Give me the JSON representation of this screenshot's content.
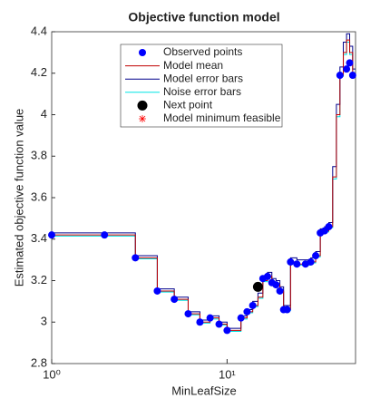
{
  "chart_data": {
    "type": "line",
    "title": "Objective function model",
    "x_label": "MinLeafSize",
    "y_label": "Estimated objective function value",
    "xlog": true,
    "xlim": [
      1,
      54
    ],
    "ylim": [
      2.8,
      4.4
    ],
    "xticks": [
      {
        "value": 1,
        "label": "10⁰"
      },
      {
        "value": 10,
        "label": "10¹"
      }
    ],
    "yticks": [
      2.8,
      3,
      3.2,
      3.4,
      3.6,
      3.8,
      4,
      4.2,
      4.4
    ],
    "x": [
      1,
      2,
      3,
      4,
      5,
      6,
      7,
      8,
      9,
      10,
      12,
      13,
      14,
      15,
      16,
      17,
      18,
      19,
      20,
      21,
      22,
      23,
      25,
      28,
      30,
      32,
      34,
      36,
      38,
      40,
      42,
      44,
      46,
      48,
      50,
      52,
      54
    ],
    "series": [
      {
        "name": "Model mean",
        "color": "#c00000",
        "values": [
          3.42,
          3.42,
          3.31,
          3.15,
          3.11,
          3.04,
          3.0,
          3.02,
          2.99,
          2.96,
          3.02,
          3.05,
          3.08,
          3.12,
          3.2,
          3.22,
          3.19,
          3.18,
          3.15,
          3.06,
          3.06,
          3.29,
          3.28,
          3.28,
          3.29,
          3.32,
          3.43,
          3.44,
          3.46,
          3.7,
          4.0,
          4.19,
          4.3,
          4.36,
          4.3,
          4.2,
          4.2
        ]
      },
      {
        "name": "Model error bars",
        "color": "#00008b",
        "values": [
          3.43,
          3.43,
          3.32,
          3.16,
          3.12,
          3.05,
          3.01,
          3.03,
          3.0,
          2.97,
          3.03,
          3.06,
          3.1,
          3.14,
          3.22,
          3.24,
          3.21,
          3.2,
          3.17,
          3.08,
          3.08,
          3.31,
          3.3,
          3.3,
          3.31,
          3.34,
          3.45,
          3.46,
          3.48,
          3.75,
          4.05,
          4.23,
          4.35,
          4.39,
          4.33,
          4.22,
          4.22
        ]
      },
      {
        "name": "Noise error bars",
        "color": "#00e5e5",
        "values": [
          3.415,
          3.415,
          3.305,
          3.145,
          3.105,
          3.035,
          2.995,
          3.015,
          2.985,
          2.955,
          3.015,
          3.045,
          3.075,
          3.115,
          3.195,
          3.215,
          3.185,
          3.175,
          3.145,
          3.055,
          3.055,
          3.285,
          3.275,
          3.275,
          3.285,
          3.315,
          3.425,
          3.435,
          3.455,
          3.69,
          3.99,
          4.185,
          4.29,
          4.35,
          4.29,
          4.19,
          4.19
        ]
      }
    ],
    "observed": {
      "name": "Observed points",
      "color": "#0000ff",
      "x": [
        1,
        2,
        3,
        4,
        5,
        6,
        7,
        8,
        9,
        10,
        12,
        13,
        14,
        16,
        17,
        18,
        19,
        20,
        21,
        22,
        23,
        25,
        28,
        30,
        32,
        34,
        36,
        38,
        44,
        48,
        50,
        52
      ],
      "values": [
        3.42,
        3.42,
        3.31,
        3.15,
        3.11,
        3.04,
        3.0,
        3.02,
        2.99,
        2.96,
        3.02,
        3.05,
        3.08,
        3.21,
        3.22,
        3.19,
        3.18,
        3.15,
        3.06,
        3.06,
        3.29,
        3.28,
        3.28,
        3.29,
        3.32,
        3.43,
        3.44,
        3.46,
        4.19,
        4.22,
        4.25,
        4.19
      ]
    },
    "next_point": {
      "name": "Next point",
      "color": "#000000",
      "x": [
        15
      ],
      "values": [
        3.17
      ]
    },
    "minimum_feasible": {
      "name": "Model minimum feasible",
      "color": "#ff0000"
    }
  }
}
